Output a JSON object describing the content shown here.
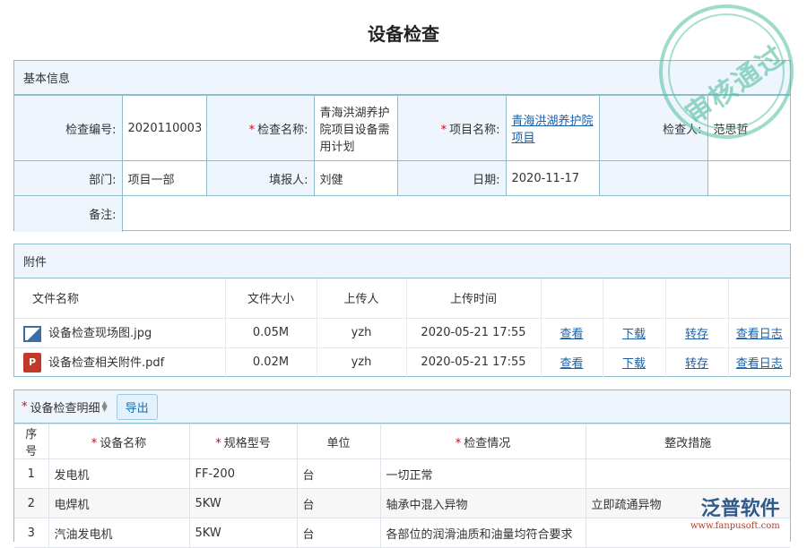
{
  "title": "设备检查",
  "basic": {
    "section": "基本信息",
    "labels": {
      "code": "检查编号:",
      "name": "检查名称:",
      "project": "项目名称:",
      "inspector": "检查人:",
      "dept": "部门:",
      "reporter": "填报人:",
      "date": "日期:",
      "remark": "备注:"
    },
    "values": {
      "code": "2020110003",
      "name": "青海洪湖养护院项目设备需用计划",
      "project": "青海洪湖养护院项目",
      "inspector": "范思哲",
      "dept": "项目一部",
      "reporter": "刘健",
      "date": "2020-11-17",
      "remark": ""
    }
  },
  "attachments": {
    "section": "附件",
    "headers": [
      "文件名称",
      "文件大小",
      "上传人",
      "上传时间"
    ],
    "actions": [
      "查看",
      "下载",
      "转存",
      "查看日志"
    ],
    "rows": [
      {
        "icon": "image-file-icon",
        "name": "设备检查现场图.jpg",
        "size": "0.05M",
        "uploader": "yzh",
        "time": "2020-05-21 17:55"
      },
      {
        "icon": "pdf-file-icon",
        "name": "设备检查相关附件.pdf",
        "size": "0.02M",
        "uploader": "yzh",
        "time": "2020-05-21 17:55"
      }
    ]
  },
  "details": {
    "section": "设备检查明细",
    "export": "导出",
    "headers": [
      "序号",
      "设备名称",
      "规格型号",
      "单位",
      "检查情况",
      "整改措施"
    ],
    "rows": [
      [
        "1",
        "发电机",
        "FF-200",
        "台",
        "一切正常",
        ""
      ],
      [
        "2",
        "电焊机",
        "5KW",
        "台",
        "轴承中混入异物",
        "立即疏通异物"
      ],
      [
        "3",
        "汽油发电机",
        "5KW",
        "台",
        "各部位的润滑油质和油量均符合要求",
        ""
      ]
    ]
  },
  "stamp": "审核通过",
  "watermark": {
    "brand": "泛普软件",
    "url": "www.fanpusoft.com"
  },
  "colors": {
    "border": "#8fbccb",
    "header_bg": "#eef5fc",
    "link": "#1a5fa8",
    "required": "#d9001b"
  }
}
